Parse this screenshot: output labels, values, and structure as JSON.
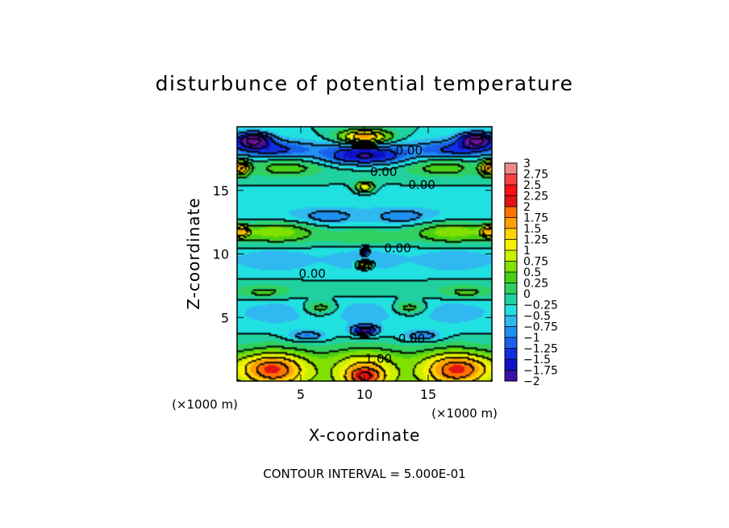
{
  "chart_data": {
    "type": "heatmap",
    "title": "disturbunce of potential temperature",
    "xlabel": "X-coordinate",
    "ylabel": "Z-coordinate",
    "xlim": [
      0,
      20
    ],
    "ylim": [
      0,
      20
    ],
    "x_ticks": [
      5,
      10,
      15
    ],
    "y_ticks": [
      5,
      10,
      15
    ],
    "x_tick_labels": [
      "5",
      "10",
      "15"
    ],
    "y_tick_labels": [
      "5",
      "10",
      "15"
    ],
    "x_unit": "(×1000 m)",
    "y_unit": "(×1000 m)",
    "footer": "CONTOUR INTERVAL = 5.000E-01",
    "colorbar": {
      "min": -2,
      "max": 3,
      "levels": [
        3,
        2.75,
        2.5,
        2.25,
        2,
        1.75,
        1.5,
        1.25,
        1,
        0.75,
        0.5,
        0.25,
        0,
        -0.25,
        -0.5,
        -0.75,
        -1,
        -1.25,
        -1.5,
        -1.75,
        -2
      ],
      "labels": [
        "3",
        "2.75",
        "2.5",
        "2.25",
        "2",
        "1.75",
        "1.5",
        "1.25",
        "1",
        "0.75",
        "0.5",
        "0.25",
        "0",
        "−0.25",
        "−0.5",
        "−0.75",
        "−1",
        "−1.25",
        "−1.5",
        "−1.75",
        "−2"
      ],
      "colors": [
        "#f08a8a",
        "#ff4040",
        "#ff1010",
        "#e01414",
        "#ff7300",
        "#ff9f00",
        "#ffd400",
        "#f7f000",
        "#c8f000",
        "#80e000",
        "#48d018",
        "#30d060",
        "#20d0a0",
        "#20e0e0",
        "#30b8f0",
        "#2090f0",
        "#1860e8",
        "#1030e0",
        "#1010c8",
        "#3a10a8",
        "#6a10a0"
      ]
    },
    "contour_labels": [
      {
        "text": "0.00",
        "x": 13.5,
        "z": 18.2
      },
      {
        "text": "0.00",
        "x": 11.5,
        "z": 16.5
      },
      {
        "text": "0.00",
        "x": 14.5,
        "z": 15.5
      },
      {
        "text": "0.00",
        "x": 12.6,
        "z": 10.5
      },
      {
        "text": "0.00",
        "x": 5.9,
        "z": 8.5
      },
      {
        "text": "0.00",
        "x": 13.7,
        "z": 3.4
      },
      {
        "text": "1.00",
        "x": 11.1,
        "z": 1.8
      }
    ],
    "field_features": [
      {
        "kind": "band",
        "z": 0.3,
        "value": 1.1,
        "width": 1.4
      },
      {
        "kind": "band",
        "z": 1.8,
        "value": 0.6,
        "width": 1.0
      },
      {
        "kind": "band",
        "z": 3.2,
        "value": 0.1,
        "width": 0.9
      },
      {
        "kind": "band",
        "z": 5.5,
        "value": -0.3,
        "width": 1.5
      },
      {
        "kind": "band",
        "z": 7.2,
        "value": 0.2,
        "width": 1.0
      },
      {
        "kind": "band",
        "z": 9.6,
        "value": -0.35,
        "width": 1.3
      },
      {
        "kind": "band",
        "z": 11.3,
        "value": 0.45,
        "width": 0.8
      },
      {
        "kind": "band",
        "z": 13.0,
        "value": -0.2,
        "width": 1.0
      },
      {
        "kind": "band",
        "z": 14.8,
        "value": -0.1,
        "width": 0.9
      },
      {
        "kind": "band",
        "z": 16.3,
        "value": 0.1,
        "width": 0.9
      },
      {
        "kind": "band",
        "z": 18.2,
        "value": -0.9,
        "width": 0.8
      },
      {
        "kind": "blob",
        "x": 10,
        "z": 0.4,
        "value": 1.2,
        "rx": 1.3,
        "rz": 0.8
      },
      {
        "kind": "blob",
        "x": 10,
        "z": 4.0,
        "value": -1.7,
        "rx": 1.0,
        "rz": 0.4
      },
      {
        "kind": "blob",
        "x": 10,
        "z": 9.2,
        "value": 2.0,
        "rx": 0.6,
        "rz": 0.3
      },
      {
        "kind": "blob",
        "x": 10,
        "z": 10.3,
        "value": -1.4,
        "rx": 0.3,
        "rz": 0.3
      },
      {
        "kind": "blob",
        "x": 10,
        "z": 15.3,
        "value": 1.6,
        "rx": 0.7,
        "rz": 0.4
      },
      {
        "kind": "blob",
        "x": 10,
        "z": 19.2,
        "value": 2.1,
        "rx": 2.0,
        "rz": 0.6
      },
      {
        "kind": "blob",
        "x": 1.2,
        "z": 19.0,
        "value": -1.9,
        "rx": 1.4,
        "rz": 0.6
      },
      {
        "kind": "blob",
        "x": 18.8,
        "z": 19.0,
        "value": -1.9,
        "rx": 1.4,
        "rz": 0.6
      },
      {
        "kind": "blob",
        "x": 0.3,
        "z": 16.8,
        "value": 1.9,
        "rx": 0.6,
        "rz": 0.6
      },
      {
        "kind": "blob",
        "x": 19.7,
        "z": 16.8,
        "value": 1.9,
        "rx": 0.6,
        "rz": 0.6
      },
      {
        "kind": "blob",
        "x": 0.3,
        "z": 11.8,
        "value": 1.5,
        "rx": 0.6,
        "rz": 0.5
      },
      {
        "kind": "blob",
        "x": 19.7,
        "z": 11.8,
        "value": 1.5,
        "rx": 0.6,
        "rz": 0.5
      },
      {
        "kind": "blob",
        "x": 3.0,
        "z": 12.0,
        "value": 0.7,
        "rx": 3.0,
        "rz": 0.7
      },
      {
        "kind": "blob",
        "x": 17.0,
        "z": 12.0,
        "value": 0.7,
        "rx": 3.0,
        "rz": 0.7
      },
      {
        "kind": "blob",
        "x": 4.0,
        "z": 17.0,
        "value": 0.7,
        "rx": 3.0,
        "rz": 0.8
      },
      {
        "kind": "blob",
        "x": 16.0,
        "z": 17.0,
        "value": 0.7,
        "rx": 3.0,
        "rz": 0.8
      },
      {
        "kind": "blob",
        "x": 2.5,
        "z": 1.0,
        "value": 0.9,
        "rx": 2.5,
        "rz": 1.0
      },
      {
        "kind": "blob",
        "x": 17.5,
        "z": 1.0,
        "value": 0.9,
        "rx": 2.5,
        "rz": 1.0
      },
      {
        "kind": "blob",
        "x": 6.5,
        "z": 5.8,
        "value": 0.8,
        "rx": 1.2,
        "rz": 0.5
      },
      {
        "kind": "blob",
        "x": 13.5,
        "z": 5.8,
        "value": 0.8,
        "rx": 1.2,
        "rz": 0.5
      },
      {
        "kind": "blob",
        "x": 2.0,
        "z": 7.0,
        "value": 0.5,
        "rx": 2.0,
        "rz": 0.5
      },
      {
        "kind": "blob",
        "x": 18.0,
        "z": 7.0,
        "value": 0.5,
        "rx": 2.0,
        "rz": 0.5
      },
      {
        "kind": "blob",
        "x": 5.5,
        "z": 3.6,
        "value": -0.8,
        "rx": 1.5,
        "rz": 0.4
      },
      {
        "kind": "blob",
        "x": 14.5,
        "z": 3.6,
        "value": -0.8,
        "rx": 1.5,
        "rz": 0.4
      },
      {
        "kind": "blob",
        "x": 7.0,
        "z": 13.0,
        "value": -0.6,
        "rx": 2.0,
        "rz": 0.6
      },
      {
        "kind": "blob",
        "x": 13.0,
        "z": 13.0,
        "value": -0.6,
        "rx": 2.0,
        "rz": 0.6
      },
      {
        "kind": "blob",
        "x": 10.0,
        "z": 17.5,
        "value": -0.9,
        "rx": 4.0,
        "rz": 0.6
      }
    ]
  }
}
